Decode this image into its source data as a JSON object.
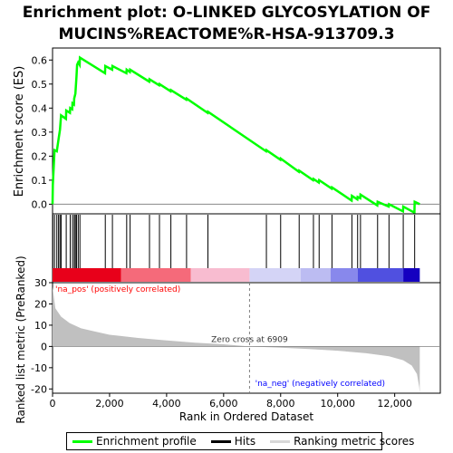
{
  "title_line1": "Enrichment plot: O-LINKED GLYCOSYLATION OF",
  "title_line2": "MUCINS%REACTOME%R-HSA-913709.3",
  "chart_data": {
    "type": "line",
    "xlabel": "Rank in Ordered Dataset",
    "ylabel_top": "Enrichment score (ES)",
    "ylabel_bottom": "Ranked list metric (PreRanked)",
    "xlim": [
      0,
      13600
    ],
    "x_ticks": [
      0,
      2000,
      4000,
      6000,
      8000,
      10000,
      12000
    ],
    "x_tick_labels": [
      "0",
      "2,000",
      "4,000",
      "6,000",
      "8,000",
      "10,000",
      "12,000"
    ],
    "es_ylim": [
      -0.04,
      0.65
    ],
    "es_ticks": [
      0.0,
      0.1,
      0.2,
      0.3,
      0.4,
      0.5,
      0.6
    ],
    "es_tick_labels": [
      "0.0",
      "0.1",
      "0.2",
      "0.3",
      "0.4",
      "0.5",
      "0.6"
    ],
    "metric_ylim": [
      -22,
      30
    ],
    "metric_ticks": [
      30,
      20,
      10,
      0,
      -10,
      -20
    ],
    "metric_tick_labels": [
      "30",
      "20",
      "10",
      "0",
      "-10",
      "-20"
    ],
    "n_genes": 12880,
    "zero_cross": 6909,
    "zero_cross_label": "Zero cross at 6909",
    "pos_label": "'na_pos' (positively correlated)",
    "neg_label": "'na_neg' (negatively correlated)",
    "hits": [
      10,
      70,
      150,
      210,
      260,
      300,
      480,
      620,
      700,
      760,
      800,
      840,
      900,
      960,
      1850,
      2100,
      2600,
      2720,
      3400,
      3750,
      4150,
      4700,
      5450,
      7500,
      8000,
      8650,
      9150,
      9350,
      9800,
      10500,
      10700,
      10800,
      11400,
      11800,
      12300,
      12700
    ],
    "es_profile": [
      {
        "x": 0,
        "y": 0.0
      },
      {
        "x": 10,
        "y": 0.08
      },
      {
        "x": 70,
        "y": 0.225
      },
      {
        "x": 150,
        "y": 0.22
      },
      {
        "x": 210,
        "y": 0.27
      },
      {
        "x": 260,
        "y": 0.31
      },
      {
        "x": 300,
        "y": 0.37
      },
      {
        "x": 470,
        "y": 0.355
      },
      {
        "x": 480,
        "y": 0.39
      },
      {
        "x": 610,
        "y": 0.38
      },
      {
        "x": 620,
        "y": 0.4
      },
      {
        "x": 690,
        "y": 0.395
      },
      {
        "x": 700,
        "y": 0.42
      },
      {
        "x": 750,
        "y": 0.415
      },
      {
        "x": 760,
        "y": 0.44
      },
      {
        "x": 800,
        "y": 0.46
      },
      {
        "x": 840,
        "y": 0.53
      },
      {
        "x": 860,
        "y": 0.58
      },
      {
        "x": 900,
        "y": 0.59
      },
      {
        "x": 950,
        "y": 0.58
      },
      {
        "x": 960,
        "y": 0.61
      },
      {
        "x": 1840,
        "y": 0.545
      },
      {
        "x": 1850,
        "y": 0.575
      },
      {
        "x": 2090,
        "y": 0.56
      },
      {
        "x": 2100,
        "y": 0.575
      },
      {
        "x": 2590,
        "y": 0.545
      },
      {
        "x": 2600,
        "y": 0.56
      },
      {
        "x": 2710,
        "y": 0.55
      },
      {
        "x": 2720,
        "y": 0.56
      },
      {
        "x": 3390,
        "y": 0.51
      },
      {
        "x": 3400,
        "y": 0.52
      },
      {
        "x": 3740,
        "y": 0.495
      },
      {
        "x": 3750,
        "y": 0.5
      },
      {
        "x": 4140,
        "y": 0.47
      },
      {
        "x": 4150,
        "y": 0.475
      },
      {
        "x": 4690,
        "y": 0.435
      },
      {
        "x": 4700,
        "y": 0.44
      },
      {
        "x": 5440,
        "y": 0.38
      },
      {
        "x": 5450,
        "y": 0.385
      },
      {
        "x": 7490,
        "y": 0.22
      },
      {
        "x": 7500,
        "y": 0.225
      },
      {
        "x": 7990,
        "y": 0.185
      },
      {
        "x": 8000,
        "y": 0.19
      },
      {
        "x": 8640,
        "y": 0.135
      },
      {
        "x": 8650,
        "y": 0.14
      },
      {
        "x": 9140,
        "y": 0.1
      },
      {
        "x": 9150,
        "y": 0.105
      },
      {
        "x": 9340,
        "y": 0.09
      },
      {
        "x": 9350,
        "y": 0.1
      },
      {
        "x": 9790,
        "y": 0.065
      },
      {
        "x": 9800,
        "y": 0.07
      },
      {
        "x": 10490,
        "y": 0.015
      },
      {
        "x": 10500,
        "y": 0.035
      },
      {
        "x": 10690,
        "y": 0.02
      },
      {
        "x": 10700,
        "y": 0.03
      },
      {
        "x": 10790,
        "y": 0.025
      },
      {
        "x": 10800,
        "y": 0.04
      },
      {
        "x": 11390,
        "y": -0.005
      },
      {
        "x": 11400,
        "y": 0.01
      },
      {
        "x": 11790,
        "y": -0.01
      },
      {
        "x": 11800,
        "y": 0.0
      },
      {
        "x": 12290,
        "y": -0.03
      },
      {
        "x": 12300,
        "y": -0.01
      },
      {
        "x": 12690,
        "y": -0.035
      },
      {
        "x": 12700,
        "y": 0.01
      },
      {
        "x": 12880,
        "y": 0.0
      }
    ],
    "metric_profile": [
      {
        "x": 0,
        "y": 28
      },
      {
        "x": 100,
        "y": 18
      },
      {
        "x": 300,
        "y": 14
      },
      {
        "x": 600,
        "y": 11
      },
      {
        "x": 1000,
        "y": 8.5
      },
      {
        "x": 1500,
        "y": 7
      },
      {
        "x": 2000,
        "y": 5.5
      },
      {
        "x": 3000,
        "y": 4
      },
      {
        "x": 4000,
        "y": 2.8
      },
      {
        "x": 5000,
        "y": 1.8
      },
      {
        "x": 6000,
        "y": 1.0
      },
      {
        "x": 6909,
        "y": 0
      },
      {
        "x": 8000,
        "y": -0.6
      },
      {
        "x": 9000,
        "y": -1.2
      },
      {
        "x": 10000,
        "y": -2
      },
      {
        "x": 11000,
        "y": -3.2
      },
      {
        "x": 11800,
        "y": -4.6
      },
      {
        "x": 12300,
        "y": -6.5
      },
      {
        "x": 12600,
        "y": -9
      },
      {
        "x": 12780,
        "y": -13
      },
      {
        "x": 12860,
        "y": -19
      },
      {
        "x": 12880,
        "y": -22
      }
    ],
    "colors": {
      "es_line": "#00ff00",
      "hit_line": "#000000",
      "metric_fill": "#c0c0c0",
      "zero_line": "#808080",
      "pos_text": "#ff0000",
      "neg_text": "#0000ff"
    },
    "colorbar_segments": [
      {
        "from": 0,
        "to": 2400,
        "color": "#e8001a"
      },
      {
        "from": 2400,
        "to": 4850,
        "color": "#f56a7a"
      },
      {
        "from": 4850,
        "to": 6909,
        "color": "#f8bcd0"
      },
      {
        "from": 6909,
        "to": 8700,
        "color": "#d4d4f6"
      },
      {
        "from": 8700,
        "to": 9750,
        "color": "#bcbcf2"
      },
      {
        "from": 9750,
        "to": 10700,
        "color": "#8888ec"
      },
      {
        "from": 10700,
        "to": 12300,
        "color": "#5050e0"
      },
      {
        "from": 12300,
        "to": 12880,
        "color": "#1500c0"
      }
    ]
  },
  "legend": {
    "enrichment_label": "Enrichment profile",
    "hits_label": "Hits",
    "metric_label": "Ranking metric scores"
  }
}
